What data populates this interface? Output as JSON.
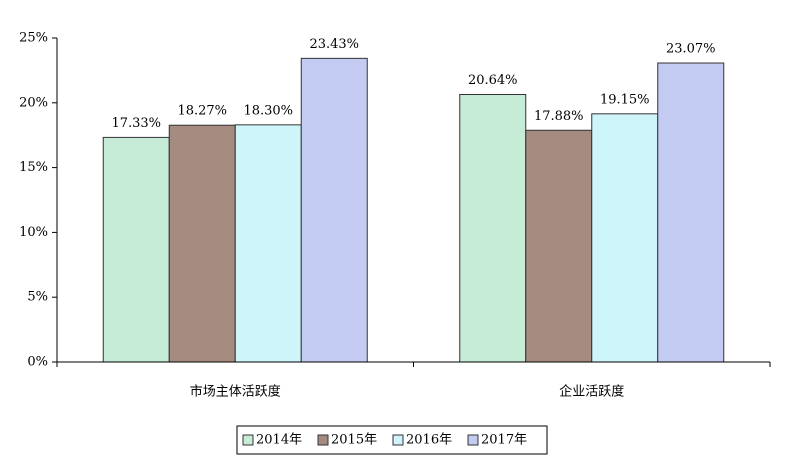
{
  "chart_data": {
    "type": "bar",
    "categories": [
      "市场主体活跃度",
      "企业活跃度"
    ],
    "series": [
      {
        "name": "2014年",
        "color": "#c6ebd6",
        "values": [
          17.33,
          20.64
        ],
        "value_labels": [
          "17.33%",
          "20.64%"
        ]
      },
      {
        "name": "2015年",
        "color": "#a58b80",
        "values": [
          18.27,
          17.88
        ],
        "value_labels": [
          "18.27%",
          "17.88%"
        ]
      },
      {
        "name": "2016年",
        "color": "#cdf5fa",
        "values": [
          18.3,
          19.15
        ],
        "value_labels": [
          "18.30%",
          "19.15%"
        ]
      },
      {
        "name": "2017年",
        "color": "#c4cbf2",
        "values": [
          23.43,
          23.07
        ],
        "value_labels": [
          "23.43%",
          "23.07%"
        ]
      }
    ],
    "ylim": [
      0,
      25
    ],
    "yticks": [
      {
        "value": 0,
        "label": "0%"
      },
      {
        "value": 5,
        "label": "5%"
      },
      {
        "value": 10,
        "label": "10%"
      },
      {
        "value": 15,
        "label": "15%"
      },
      {
        "value": 20,
        "label": "20%"
      },
      {
        "value": 25,
        "label": "25%"
      }
    ],
    "legend": "bottom"
  }
}
